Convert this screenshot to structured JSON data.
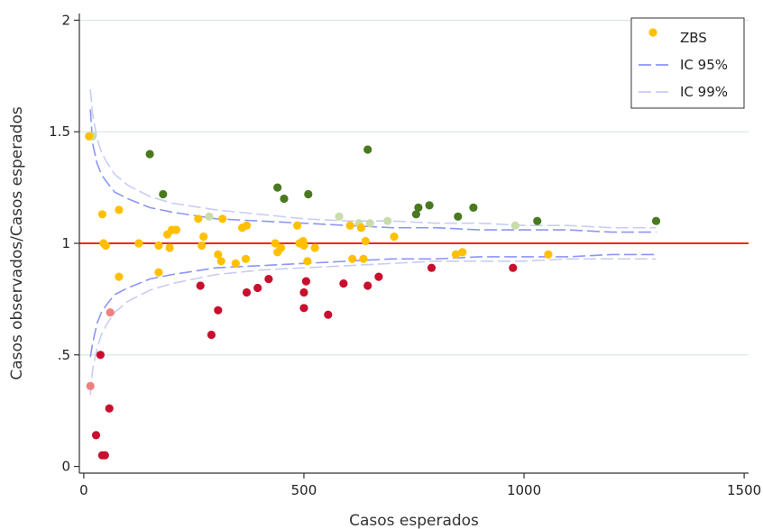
{
  "chart_data": {
    "type": "scatter",
    "xlabel": "Casos esperados",
    "ylabel": "Casos observados/Casos esperados",
    "xlim": [
      -10,
      1510
    ],
    "ylim": [
      -0.03,
      2.03
    ],
    "xticks": [
      0,
      500,
      1000,
      1500
    ],
    "xtick_labels": [
      "0",
      "500",
      "1000",
      "1500"
    ],
    "yticks": [
      0,
      0.5,
      1,
      1.5,
      2
    ],
    "ytick_labels": [
      "0",
      ".5",
      "1",
      "1.5",
      "2"
    ],
    "grid": "horizontal",
    "legend_position": "top-right",
    "legend": [
      {
        "label": "ZBS",
        "kind": "point",
        "color": "#ffc000"
      },
      {
        "label": "IC 95%",
        "kind": "line",
        "color": "#8c96f5",
        "dash": "long-dash"
      },
      {
        "label": "IC 99%",
        "kind": "line",
        "color": "#c8cdf5",
        "dash": "long-dash"
      }
    ],
    "reference_line": {
      "y": 1.0,
      "color": "#ff0000"
    },
    "colors": {
      "sig_high_99": "#4a7a20",
      "sig_high_95": "#c9dcac",
      "not_significant": "#ffc000",
      "sig_low_95": "#f08080",
      "sig_low_99": "#c8102e",
      "grid": "#d6e8e8"
    },
    "series": [
      {
        "group": "sig_high_99",
        "points": [
          [
            150,
            1.4
          ],
          [
            180,
            1.22
          ],
          [
            440,
            1.25
          ],
          [
            455,
            1.2
          ],
          [
            510,
            1.22
          ],
          [
            645,
            1.42
          ],
          [
            755,
            1.13
          ],
          [
            760,
            1.16
          ],
          [
            785,
            1.17
          ],
          [
            850,
            1.12
          ],
          [
            885,
            1.16
          ],
          [
            1030,
            1.1
          ],
          [
            1300,
            1.1
          ]
        ]
      },
      {
        "group": "sig_high_95",
        "points": [
          [
            20,
            1.48
          ],
          [
            285,
            1.12
          ],
          [
            580,
            1.12
          ],
          [
            625,
            1.09
          ],
          [
            650,
            1.09
          ],
          [
            690,
            1.1
          ],
          [
            980,
            1.08
          ]
        ]
      },
      {
        "group": "not_significant",
        "points": [
          [
            12,
            1.48
          ],
          [
            42,
            1.13
          ],
          [
            45,
            1.0
          ],
          [
            50,
            0.99
          ],
          [
            80,
            1.15
          ],
          [
            80,
            0.85
          ],
          [
            125,
            1.0
          ],
          [
            170,
            0.99
          ],
          [
            170,
            0.87
          ],
          [
            190,
            1.04
          ],
          [
            195,
            0.98
          ],
          [
            200,
            1.06
          ],
          [
            210,
            1.06
          ],
          [
            260,
            1.11
          ],
          [
            268,
            0.99
          ],
          [
            272,
            1.03
          ],
          [
            305,
            0.95
          ],
          [
            312,
            0.92
          ],
          [
            315,
            1.11
          ],
          [
            345,
            0.91
          ],
          [
            360,
            1.07
          ],
          [
            368,
            0.93
          ],
          [
            370,
            1.08
          ],
          [
            435,
            1.0
          ],
          [
            440,
            0.96
          ],
          [
            448,
            0.98
          ],
          [
            485,
            1.08
          ],
          [
            490,
            1.0
          ],
          [
            498,
            1.01
          ],
          [
            500,
            0.99
          ],
          [
            508,
            0.92
          ],
          [
            525,
            0.98
          ],
          [
            605,
            1.08
          ],
          [
            610,
            0.93
          ],
          [
            630,
            1.07
          ],
          [
            635,
            0.93
          ],
          [
            640,
            1.01
          ],
          [
            705,
            1.03
          ],
          [
            845,
            0.95
          ],
          [
            860,
            0.96
          ],
          [
            1055,
            0.95
          ]
        ]
      },
      {
        "group": "sig_low_95",
        "points": [
          [
            15,
            0.36
          ],
          [
            60,
            0.69
          ]
        ]
      },
      {
        "group": "sig_low_99",
        "points": [
          [
            28,
            0.14
          ],
          [
            38,
            0.5
          ],
          [
            42,
            0.05
          ],
          [
            48,
            0.05
          ],
          [
            58,
            0.26
          ],
          [
            265,
            0.81
          ],
          [
            290,
            0.59
          ],
          [
            305,
            0.7
          ],
          [
            370,
            0.78
          ],
          [
            395,
            0.8
          ],
          [
            420,
            0.84
          ],
          [
            500,
            0.78
          ],
          [
            500,
            0.71
          ],
          [
            505,
            0.83
          ],
          [
            555,
            0.68
          ],
          [
            590,
            0.82
          ],
          [
            645,
            0.81
          ],
          [
            670,
            0.85
          ],
          [
            790,
            0.89
          ],
          [
            975,
            0.89
          ]
        ]
      }
    ],
    "ci_95": {
      "x": [
        15,
        20,
        30,
        40,
        50,
        70,
        100,
        150,
        200,
        300,
        400,
        500,
        600,
        700,
        800,
        900,
        1000,
        1100,
        1200,
        1300
      ],
      "upper": [
        1.6,
        1.45,
        1.36,
        1.31,
        1.28,
        1.23,
        1.2,
        1.16,
        1.14,
        1.11,
        1.1,
        1.09,
        1.08,
        1.07,
        1.07,
        1.06,
        1.06,
        1.06,
        1.05,
        1.05
      ],
      "lower": [
        0.49,
        0.55,
        0.64,
        0.69,
        0.72,
        0.77,
        0.8,
        0.84,
        0.86,
        0.89,
        0.9,
        0.91,
        0.92,
        0.93,
        0.93,
        0.94,
        0.94,
        0.94,
        0.95,
        0.95
      ]
    },
    "ci_99": {
      "x": [
        15,
        20,
        30,
        40,
        50,
        70,
        100,
        150,
        200,
        300,
        400,
        500,
        600,
        700,
        800,
        900,
        1000,
        1100,
        1200,
        1300
      ],
      "upper": [
        1.69,
        1.58,
        1.47,
        1.41,
        1.37,
        1.31,
        1.26,
        1.21,
        1.18,
        1.15,
        1.13,
        1.11,
        1.1,
        1.1,
        1.09,
        1.09,
        1.08,
        1.08,
        1.07,
        1.07
      ],
      "lower": [
        0.32,
        0.43,
        0.53,
        0.59,
        0.63,
        0.69,
        0.74,
        0.79,
        0.82,
        0.86,
        0.88,
        0.89,
        0.9,
        0.91,
        0.92,
        0.92,
        0.92,
        0.93,
        0.93,
        0.93
      ]
    }
  }
}
